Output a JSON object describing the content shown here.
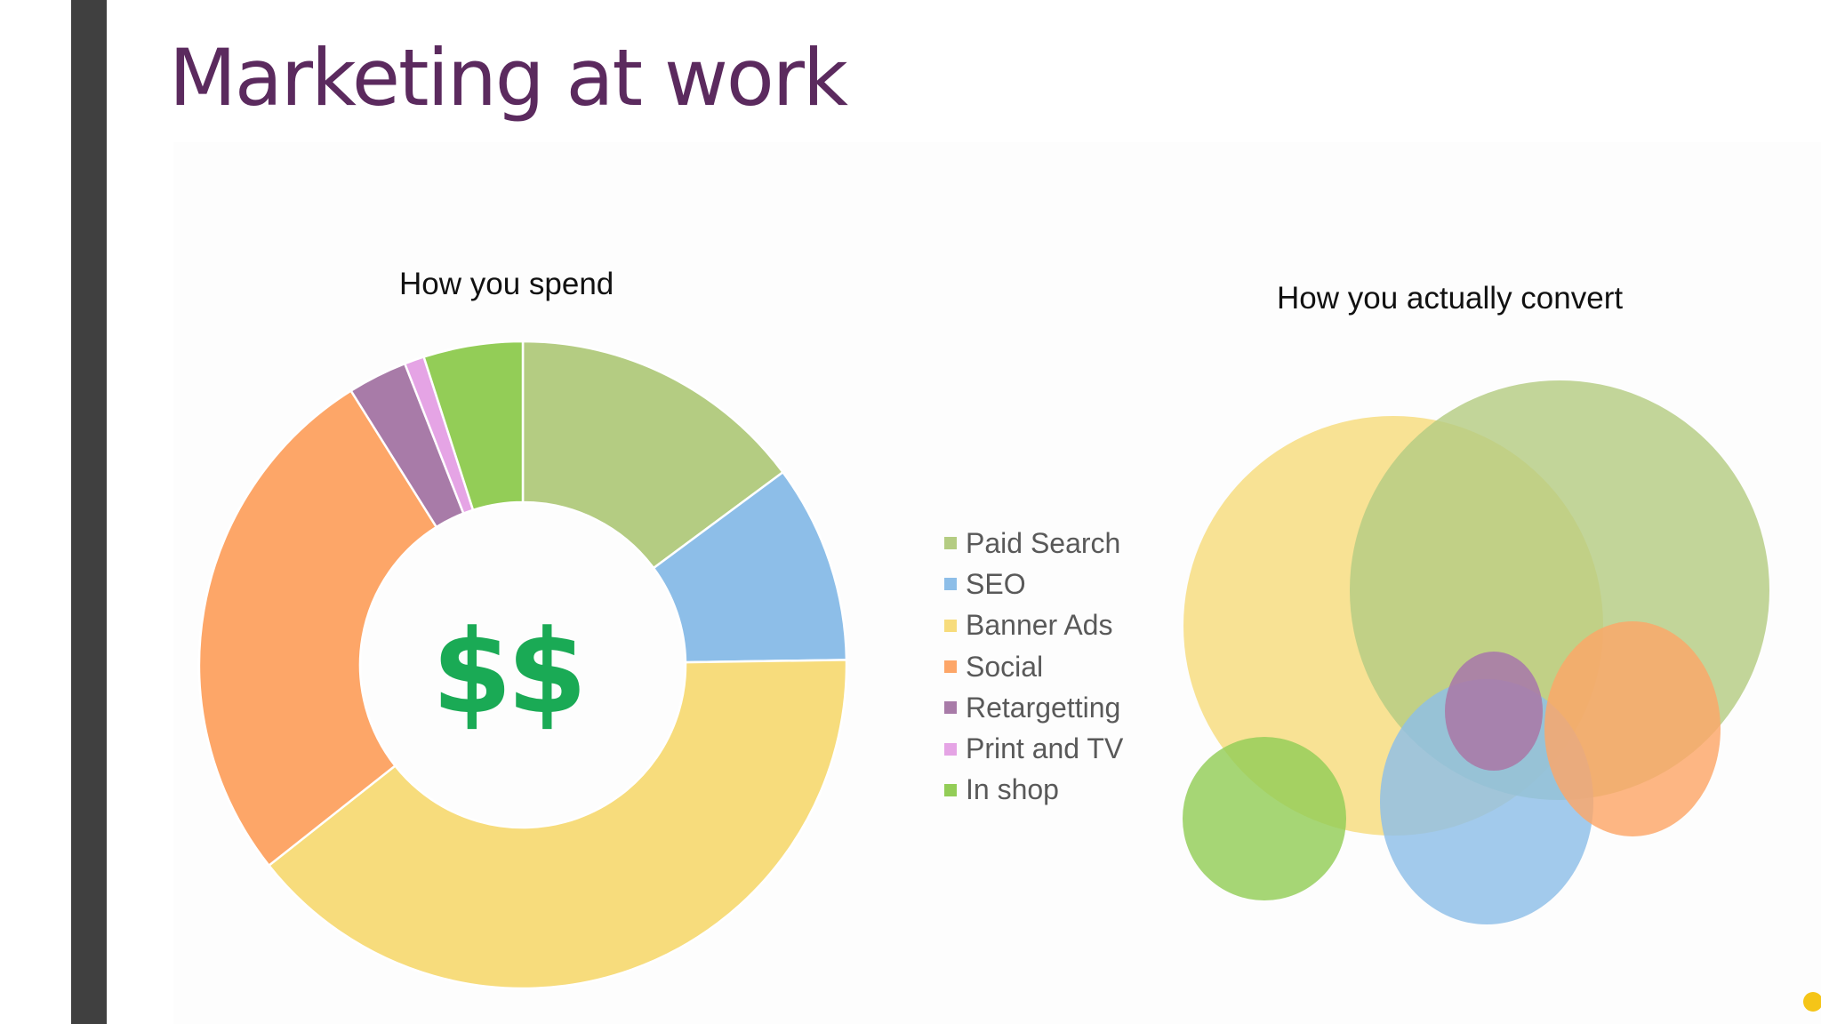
{
  "slide": {
    "title": "Marketing at work"
  },
  "chart_data": [
    {
      "type": "pie",
      "title": "How you spend",
      "center_label": "$$",
      "categories": [
        "Paid Search",
        "SEO",
        "Banner Ads",
        "Social",
        "Retargetting",
        "Print and TV",
        "In shop"
      ],
      "values": [
        15,
        10,
        40,
        27,
        3,
        1,
        5
      ],
      "colors": [
        "#b4cc82",
        "#8dbee8",
        "#f7dc7c",
        "#fda668",
        "#a87ba8",
        "#e5a4e5",
        "#93cd57"
      ],
      "legend_position": "right"
    },
    {
      "type": "other",
      "title": "How you actually convert",
      "circles": [
        {
          "category": "Banner Ads",
          "color": "#f7dc7c"
        },
        {
          "category": "Paid Search",
          "color": "#b4cc82"
        },
        {
          "category": "In shop",
          "color": "#93cd57"
        },
        {
          "category": "SEO",
          "color": "#8dbee8"
        },
        {
          "category": "Social",
          "color": "#fda668"
        },
        {
          "category": "Retargetting",
          "color": "#a87ba8"
        }
      ]
    }
  ],
  "accent_dot_color": "#f5c518"
}
